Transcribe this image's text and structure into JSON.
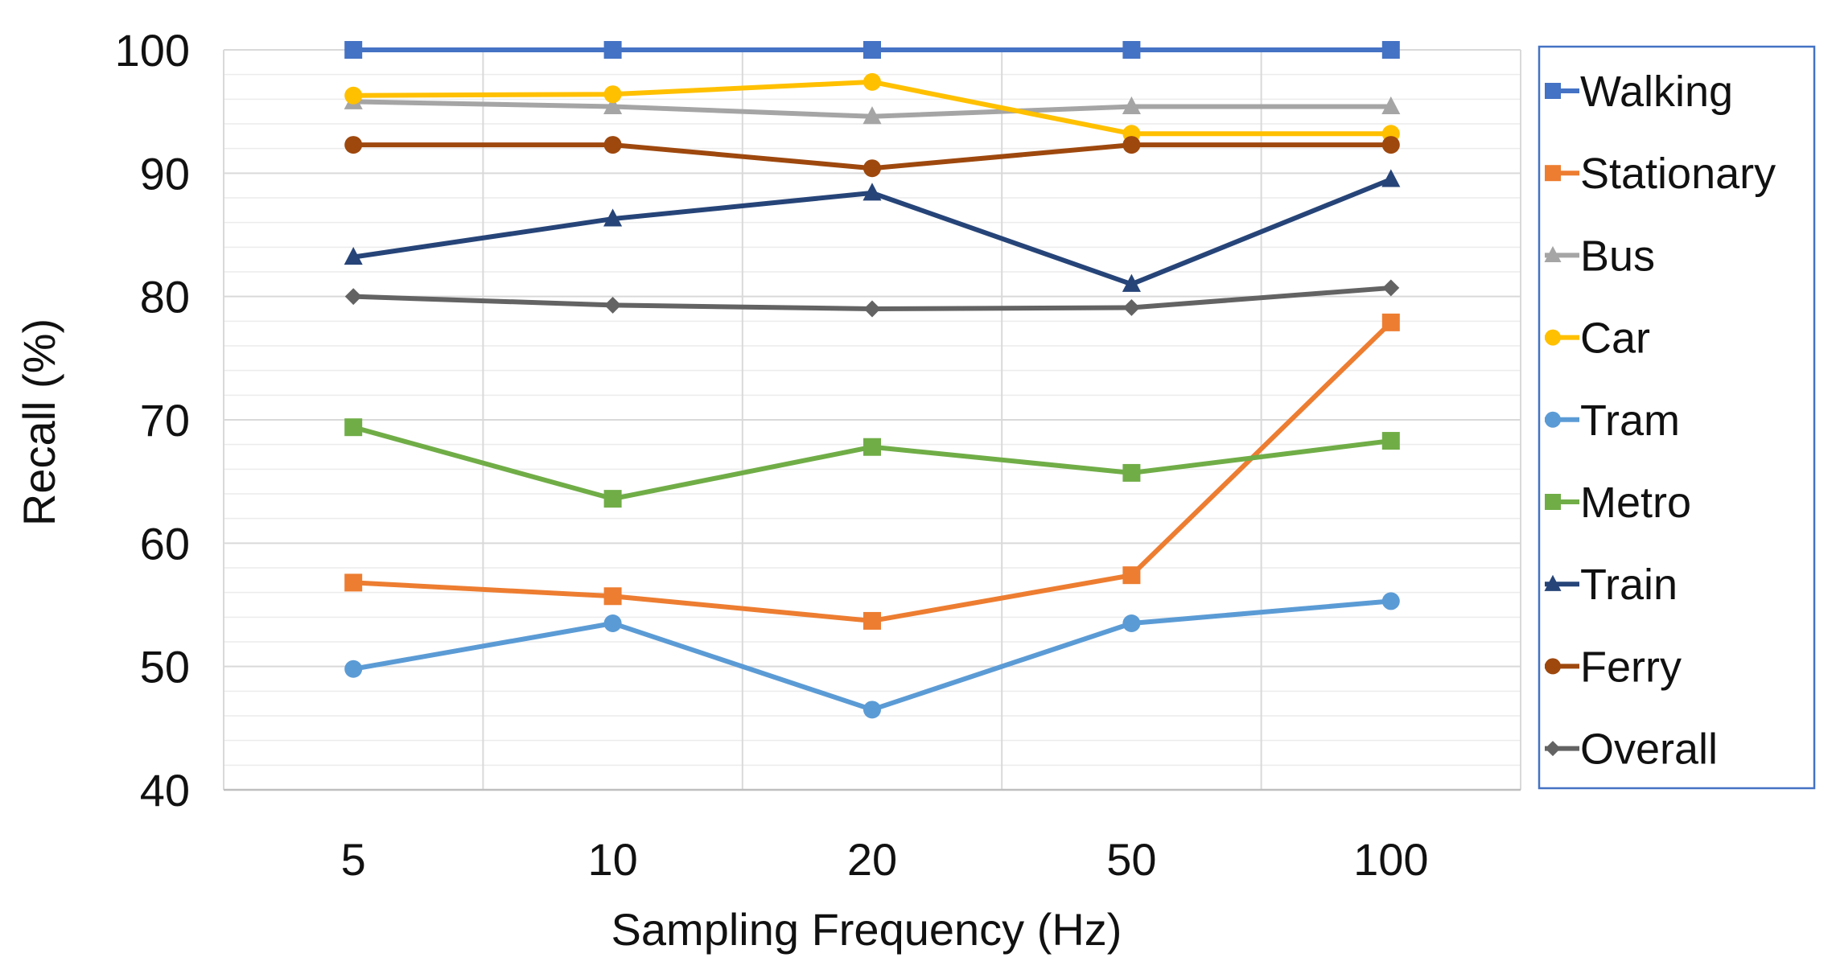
{
  "chart_data": {
    "type": "line",
    "title": "",
    "xlabel": "Sampling Frequency (Hz)",
    "ylabel": "Recall (%)",
    "categories": [
      "5",
      "10",
      "20",
      "50",
      "100"
    ],
    "ylim": [
      40,
      100
    ],
    "yticks": [
      40,
      50,
      60,
      70,
      80,
      90,
      100
    ],
    "grid": true,
    "legend_position": "right",
    "series": [
      {
        "name": "Walking",
        "color": "#4472C4",
        "marker": "square",
        "values": [
          100,
          100,
          100,
          100,
          100
        ]
      },
      {
        "name": "Stationary",
        "color": "#ED7D31",
        "marker": "square",
        "values": [
          56.8,
          55.7,
          53.7,
          57.4,
          77.9
        ]
      },
      {
        "name": "Bus",
        "color": "#A5A5A5",
        "marker": "triangle",
        "values": [
          95.8,
          95.4,
          94.6,
          95.4,
          95.4
        ]
      },
      {
        "name": "Car",
        "color": "#FFC000",
        "marker": "circle",
        "values": [
          96.3,
          96.4,
          97.4,
          93.2,
          93.2
        ]
      },
      {
        "name": "Tram",
        "color": "#5B9BD5",
        "marker": "circle",
        "values": [
          49.8,
          53.5,
          46.5,
          53.5,
          55.3
        ]
      },
      {
        "name": "Metro",
        "color": "#70AD47",
        "marker": "square",
        "values": [
          69.4,
          63.6,
          67.8,
          65.7,
          68.3
        ]
      },
      {
        "name": "Train",
        "color": "#264478",
        "marker": "triangle",
        "values": [
          83.2,
          86.3,
          88.4,
          81.0,
          89.5
        ]
      },
      {
        "name": "Ferry",
        "color": "#9E480E",
        "marker": "circle",
        "values": [
          92.3,
          92.3,
          90.4,
          92.3,
          92.3
        ]
      },
      {
        "name": "Overall",
        "color": "#636363",
        "marker": "diamond",
        "values": [
          80.0,
          79.3,
          79.0,
          79.1,
          80.7
        ]
      }
    ],
    "legend_border_color": "#4472C4"
  }
}
